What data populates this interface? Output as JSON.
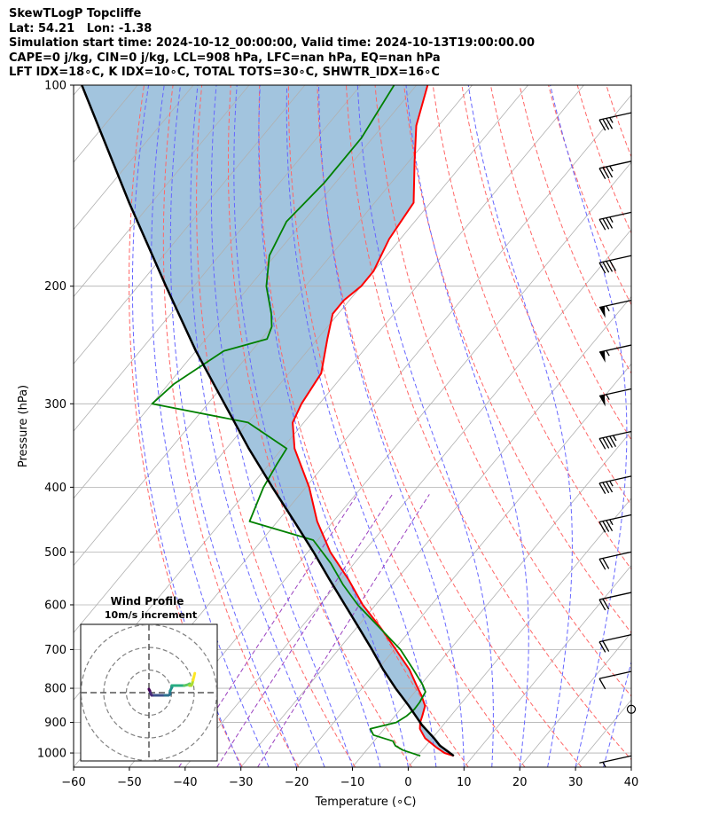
{
  "header": {
    "line1": "SkewTLogP Topcliffe",
    "line2": "Lat: 54.21   Lon: -1.38",
    "line3": "Simulation start time: 2024-10-12_00:00:00, Valid time: 2024-10-13T19:00:00.00",
    "line4": "CAPE=0 j/kg, CIN=0 j/kg, LCL=908 hPa, LFC=nan hPa, EQ=nan hPa",
    "line5": "LFT IDX=18∘C, K IDX=10∘C, TOTAL TOTS=30∘C, SHWTR_IDX=16∘C"
  },
  "chart_data": [
    {
      "type": "line",
      "name": "skew-t-log-p",
      "xlabel": "Temperature (∘C)",
      "ylabel": "Pressure (hPa)",
      "xlim": [
        -60,
        40
      ],
      "ylim": [
        1050,
        100
      ],
      "y_scale": "log",
      "x_ticks": [
        -60,
        -50,
        -40,
        -30,
        -20,
        -10,
        0,
        10,
        20,
        30,
        40
      ],
      "y_ticks": [
        100,
        200,
        300,
        400,
        500,
        600,
        700,
        800,
        900,
        1000
      ],
      "grid": true,
      "colors": {
        "temperature": "#ff0000",
        "dewpoint": "#008000",
        "parcel": "#000000",
        "cape_shading": "#a2c4de",
        "dry_adiabats": "#ff6666",
        "moist_adiabats": "#6666ff",
        "mixing_ratio": "#9a3fbf",
        "isotherms": "#b0b0b0"
      },
      "series": [
        {
          "key": "temperature",
          "pressure": [
            1010,
            1000,
            980,
            950,
            920,
            900,
            880,
            850,
            820,
            800,
            750,
            700,
            650,
            600,
            550,
            500,
            450,
            400,
            350,
            320,
            300,
            270,
            240,
            220,
            210,
            200,
            190,
            170,
            150,
            130,
            115,
            100
          ],
          "temperature": [
            6.5,
            4.4,
            2.0,
            -1.3,
            -3.6,
            -4.5,
            -5.1,
            -6.1,
            -8.3,
            -10.0,
            -14.3,
            -19.7,
            -25.6,
            -32.3,
            -38.6,
            -46.0,
            -52.9,
            -59.4,
            -67.8,
            -72.0,
            -73.2,
            -74.2,
            -78.2,
            -81.0,
            -81.0,
            -80.0,
            -80.0,
            -82.0,
            -83.0,
            -89.0,
            -94.0,
            -98.0
          ]
        },
        {
          "key": "dewpoint",
          "pressure": [
            1010,
            990,
            975,
            960,
            940,
            920,
            900,
            880,
            860,
            840,
            810,
            790,
            750,
            700,
            600,
            560,
            520,
            480,
            450,
            400,
            370,
            350,
            320,
            300,
            280,
            250,
            240,
            230,
            220,
            200,
            180,
            160,
            140,
            120,
            100
          ],
          "temperature": [
            0.5,
            -3.5,
            -5.5,
            -6.6,
            -11.0,
            -12.5,
            -8.8,
            -7.9,
            -7.5,
            -7.6,
            -8.1,
            -9.7,
            -13.6,
            -18.9,
            -33.2,
            -38.8,
            -44.2,
            -50.8,
            -65.0,
            -67.6,
            -68.6,
            -69.2,
            -80.0,
            -100.0,
            -99.0,
            -95.0,
            -89.0,
            -90.0,
            -92.0,
            -97.0,
            -101.0,
            -103.0,
            -102.0,
            -102.0,
            -104.0
          ]
        },
        {
          "key": "parcel",
          "pressure": [
            1010,
            975,
            950,
            908,
            850,
            800,
            750,
            700,
            650,
            600,
            550,
            500,
            450,
            400,
            350,
            300,
            250,
            200,
            150,
            100
          ],
          "temperature": [
            6.5,
            2.5,
            0.3,
            -3.8,
            -9.0,
            -14.0,
            -19.0,
            -24.0,
            -29.5,
            -35.5,
            -42.0,
            -49.0,
            -57.0,
            -66.0,
            -76.0,
            -87.0,
            -100.0,
            -115.0,
            -134.0,
            -160.0
          ]
        }
      ],
      "wind_barbs": [
        {
          "pressure": 110,
          "speed_kt": 35
        },
        {
          "pressure": 130,
          "speed_kt": 35
        },
        {
          "pressure": 155,
          "speed_kt": 35
        },
        {
          "pressure": 180,
          "speed_kt": 40
        },
        {
          "pressure": 210,
          "speed_kt": 55
        },
        {
          "pressure": 245,
          "speed_kt": 55
        },
        {
          "pressure": 285,
          "speed_kt": 55
        },
        {
          "pressure": 330,
          "speed_kt": 45
        },
        {
          "pressure": 385,
          "speed_kt": 35
        },
        {
          "pressure": 440,
          "speed_kt": 35
        },
        {
          "pressure": 500,
          "speed_kt": 20
        },
        {
          "pressure": 575,
          "speed_kt": 20
        },
        {
          "pressure": 665,
          "speed_kt": 20
        },
        {
          "pressure": 755,
          "speed_kt": 10
        },
        {
          "pressure": 860,
          "speed_kt": 0
        },
        {
          "pressure": 1010,
          "speed_kt": 5
        }
      ]
    },
    {
      "type": "scatter",
      "name": "wind-hodograph",
      "title": "Wind Profile",
      "subtitle": "10m/s increment",
      "ring_increment_ms": 10,
      "u": [
        0.0,
        0.2,
        0.5,
        0.8,
        1.2,
        1.5,
        3.0,
        5.0,
        7.0,
        9.0,
        11.0,
        12.0,
        12.0,
        13.0,
        13.0,
        15.0,
        18.0,
        20.0,
        22.0,
        23.0,
        23.0,
        24.0,
        24.5,
        25.0,
        25.5,
        26.0
      ],
      "v": [
        2.0,
        1.5,
        1.0,
        0.0,
        -1.0,
        -1.5,
        -1.5,
        -1.5,
        -1.5,
        -1.5,
        -1.5,
        -1.0,
        1.0,
        3.0,
        4.0,
        4.0,
        4.0,
        4.0,
        4.5,
        5.0,
        4.0,
        4.0,
        5.0,
        7.0,
        9.0,
        11.0
      ],
      "colorscale": "viridis"
    }
  ]
}
